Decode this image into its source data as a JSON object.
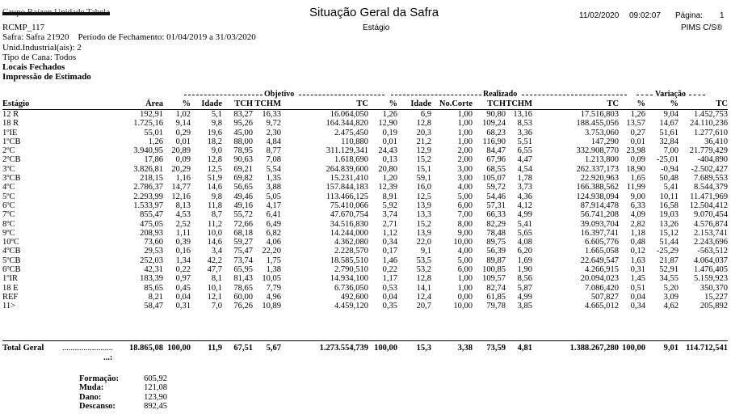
{
  "header": {
    "company_redacted": "Grupo Raízen Unidade Tabela",
    "title": "Situação Geral da Safra",
    "subtitle": "Estágio",
    "date": "11/02/2020",
    "time": "09:02:07",
    "page_label": "Página:",
    "page_number": "1",
    "report_code": "RCMP_117",
    "system": "PIMS C/S®",
    "safra": "Safra: Safra 21920",
    "periodo": "Período de Fechamento: 01/04/2019 a 31/03/2020",
    "unid": "Unid.Industrial(ais): 2",
    "tipo_cana": "Tipo de Cana: Todos",
    "locais": "Locais Fechados",
    "impressao": "Impressão de Estimado"
  },
  "groups": {
    "objetivo": "Objetivo",
    "realizado": "Realizado",
    "variacao": "Variação"
  },
  "columns": [
    "Estágio",
    "Área",
    "%",
    "Idade",
    "TCH",
    "TCHM",
    "TC",
    "%",
    "Idade",
    "No.Corte",
    "TCH",
    "TCHM",
    "TC",
    "%",
    "%",
    "TC"
  ],
  "rows": [
    [
      "12 R",
      "192,91",
      "1,02",
      "5,1",
      "83,27",
      "16,33",
      "16.064,050",
      "1,26",
      "6,9",
      "1,00",
      "90,80",
      "13,16",
      "17.516,803",
      "1,26",
      "9,04",
      "1.452,753"
    ],
    [
      "18 R",
      "1.725,16",
      "9,14",
      "9,8",
      "95,26",
      "9,72",
      "164.344,820",
      "12,90",
      "12,8",
      "1,00",
      "109,24",
      "8,53",
      "188.455,056",
      "13,57",
      "14,67",
      "24.110,236"
    ],
    [
      "1ºIE",
      "55,01",
      "0,29",
      "19,6",
      "45,00",
      "2,30",
      "2.475,450",
      "0,19",
      "20,3",
      "1,00",
      "68,23",
      "3,36",
      "3.753,060",
      "0,27",
      "51,61",
      "1.277,610"
    ],
    [
      "1ºCB",
      "1,26",
      "0,01",
      "18,2",
      "88,00",
      "4,84",
      "110,880",
      "0,01",
      "21,2",
      "1,00",
      "116,90",
      "5,51",
      "147,290",
      "0,01",
      "32,84",
      "36,410"
    ],
    [
      "2ºC",
      "3.940,95",
      "20,89",
      "9,0",
      "78,95",
      "8,77",
      "311.129,341",
      "24,43",
      "12,9",
      "2,00",
      "84,47",
      "6,55",
      "332.908,770",
      "23,98",
      "7,00",
      "21.779,429"
    ],
    [
      "2ºCB",
      "17,86",
      "0,09",
      "12,8",
      "90,63",
      "7,08",
      "1.618,690",
      "0,13",
      "15,2",
      "2,00",
      "67,96",
      "4,47",
      "1.213,800",
      "0,09",
      "-25,01",
      "-404,890"
    ],
    [
      "3ºC",
      "3.826,81",
      "20,29",
      "12,5",
      "69,21",
      "5,54",
      "264.839,600",
      "20,80",
      "15,1",
      "3,00",
      "68,55",
      "4,54",
      "262.337,173",
      "18,90",
      "-0,94",
      "-2.502,427"
    ],
    [
      "3ºCB",
      "218,15",
      "1,16",
      "51,9",
      "69,82",
      "1,35",
      "15.231,410",
      "1,20",
      "59,1",
      "3,00",
      "105,07",
      "1,78",
      "22.920,963",
      "1,65",
      "50,48",
      "7.689,553"
    ],
    [
      "4ºC",
      "2.786,37",
      "14,77",
      "14,6",
      "56,65",
      "3,88",
      "157.844,183",
      "12,39",
      "16,0",
      "4,00",
      "59,72",
      "3,73",
      "166.388,562",
      "11,99",
      "5,41",
      "8.544,379"
    ],
    [
      "5ºC",
      "2.293,99",
      "12,16",
      "9,8",
      "49,46",
      "5,05",
      "113.466,125",
      "8,91",
      "12,5",
      "5,00",
      "54,46",
      "4,36",
      "124.938,094",
      "9,00",
      "10,11",
      "11.471,969"
    ],
    [
      "6ºC",
      "1.533,97",
      "8,13",
      "11,8",
      "49,16",
      "4,17",
      "75.410,066",
      "5,92",
      "13,9",
      "6,00",
      "57,31",
      "4,12",
      "87.914,478",
      "6,33",
      "16,58",
      "12.504,412"
    ],
    [
      "7ºC",
      "855,47",
      "4,53",
      "8,7",
      "55,72",
      "6,41",
      "47.670,754",
      "3,74",
      "13,3",
      "7,00",
      "66,33",
      "4,99",
      "56.741,208",
      "4,09",
      "19,03",
      "9.070,454"
    ],
    [
      "8ºC",
      "475,05",
      "2,52",
      "11,2",
      "72,66",
      "6,49",
      "34.516,830",
      "2,71",
      "15,2",
      "8,00",
      "82,29",
      "5,41",
      "39.093,704",
      "2,82",
      "13,26",
      "4.576,874"
    ],
    [
      "9ºC",
      "208,93",
      "1,11",
      "10,0",
      "68,18",
      "6,82",
      "14.244,000",
      "1,12",
      "13,9",
      "9,00",
      "78,48",
      "5,65",
      "16.397,741",
      "1,18",
      "15,12",
      "2.153,741"
    ],
    [
      "10ºC",
      "73,60",
      "0,39",
      "14,6",
      "59,27",
      "4,06",
      "4.362,080",
      "0,34",
      "22,0",
      "10,00",
      "89,75",
      "4,08",
      "6.605,776",
      "0,48",
      "51,44",
      "2.243,696"
    ],
    [
      "4ºCB",
      "29,53",
      "0,16",
      "3,4",
      "75,47",
      "22,20",
      "2.228,570",
      "0,17",
      "9,1",
      "4,00",
      "56,39",
      "6,20",
      "1.665,058",
      "0,12",
      "-25,29",
      "-563,512"
    ],
    [
      "5ºCB",
      "252,03",
      "1,34",
      "42,2",
      "73,74",
      "1,75",
      "18.585,510",
      "1,46",
      "53,5",
      "5,00",
      "89,87",
      "1,69",
      "22.649,547",
      "1,63",
      "21,87",
      "4.064,037"
    ],
    [
      "6ºCB",
      "42,31",
      "0,22",
      "47,7",
      "65,95",
      "1,38",
      "2.790,510",
      "0,22",
      "53,2",
      "6,00",
      "100,85",
      "1,90",
      "4.266,915",
      "0,31",
      "52,91",
      "1.476,405"
    ],
    [
      "1ºIR",
      "183,39",
      "0,97",
      "8,1",
      "81,43",
      "10,05",
      "14.934,100",
      "1,17",
      "12,8",
      "1,00",
      "109,57",
      "8,56",
      "20.094,023",
      "1,45",
      "34,55",
      "5.159,923"
    ],
    [
      "18 E",
      "85,65",
      "0,45",
      "10,1",
      "78,65",
      "7,79",
      "6.736,050",
      "0,53",
      "14,1",
      "1,00",
      "82,74",
      "5,87",
      "7.086,420",
      "0,51",
      "5,20",
      "350,370"
    ],
    [
      "REF",
      "8,21",
      "0,04",
      "12,1",
      "60,00",
      "4,96",
      "492,600",
      "0,04",
      "12,4",
      "0,00",
      "61,85",
      "4,99",
      "507,827",
      "0,04",
      "3,09",
      "15,227"
    ],
    [
      "11>",
      "58,47",
      "0,31",
      "7,0",
      "76,26",
      "10,89",
      "4.459,120",
      "0,35",
      "20,7",
      "10,00",
      "79,78",
      "3,85",
      "4.665,012",
      "0,34",
      "4,62",
      "205,892"
    ]
  ],
  "total": {
    "label": "Total Geral",
    "dots": "........................",
    "dots2": "...:",
    "values": [
      "18.865,08",
      "100,00",
      "11,9",
      "67,51",
      "5,67",
      "1.273.554,739",
      "100,00",
      "15,3",
      "3,38",
      "73,59",
      "4,81",
      "1.388.267,280",
      "100,00",
      "9,01",
      "114.712,541"
    ]
  },
  "summary": [
    {
      "label": "Formação:",
      "value": "605,92"
    },
    {
      "label": "Muda:",
      "value": "121,08"
    },
    {
      "label": "Dano:",
      "value": "123,90"
    },
    {
      "label": "Descanso:",
      "value": "892,45"
    }
  ]
}
